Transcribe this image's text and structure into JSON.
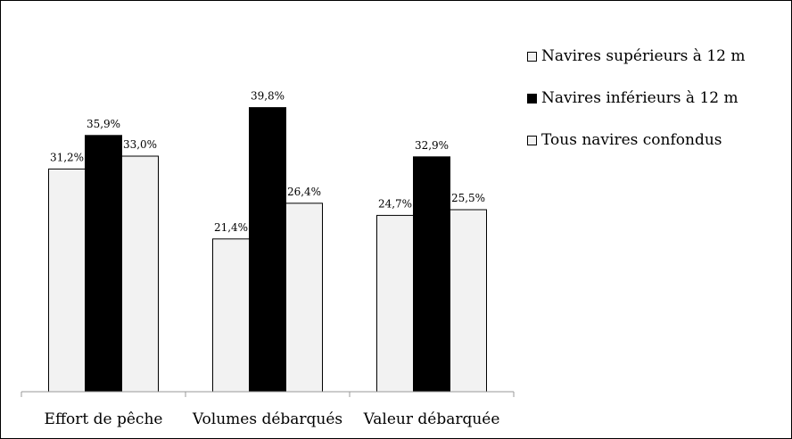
{
  "chart_data": {
    "type": "bar",
    "title": "",
    "xlabel": "",
    "ylabel": "",
    "categories": [
      "Effort de pêche",
      "Volumes débarqués",
      "Valeur débarquée"
    ],
    "series": [
      {
        "name": "Navires supérieurs à 12 m",
        "values": [
          31.2,
          21.4,
          24.7
        ],
        "labels": [
          "31,2%",
          "21,4%",
          "24,7%"
        ],
        "color": "#f2f2f2"
      },
      {
        "name": "Navires inférieurs à 12 m",
        "values": [
          35.9,
          39.8,
          32.9
        ],
        "labels": [
          "35,9%",
          "39,8%",
          "32,9%"
        ],
        "color": "#000000"
      },
      {
        "name": "Tous navires confondus",
        "values": [
          33.0,
          26.4,
          25.5
        ],
        "labels": [
          "33,0%",
          "26,4%",
          "25,5%"
        ],
        "color": "#f2f2f2"
      }
    ],
    "ylim": [
      0,
      50
    ],
    "grid": false,
    "legend_position": "right"
  }
}
